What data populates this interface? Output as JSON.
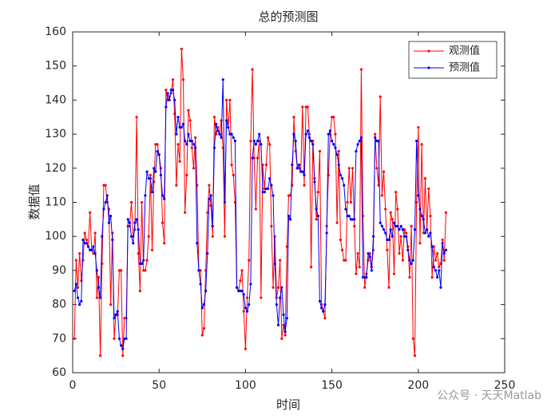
{
  "chart_data": {
    "type": "line",
    "title": "总的预测图",
    "x_label": "时间",
    "y_label": "数据值",
    "annotation": "公众号 · 天天Matlab",
    "x": [
      1,
      2,
      3,
      4,
      5,
      6,
      7,
      8,
      9,
      10,
      11,
      12,
      13,
      14,
      15,
      16,
      17,
      18,
      19,
      20,
      21,
      22,
      23,
      24,
      25,
      26,
      27,
      28,
      29,
      30,
      31,
      32,
      33,
      34,
      35,
      36,
      37,
      38,
      39,
      40,
      41,
      42,
      43,
      44,
      45,
      46,
      47,
      48,
      49,
      50,
      51,
      52,
      53,
      54,
      55,
      56,
      57,
      58,
      59,
      60,
      61,
      62,
      63,
      64,
      65,
      66,
      67,
      68,
      69,
      70,
      71,
      72,
      73,
      74,
      75,
      76,
      77,
      78,
      79,
      80,
      81,
      82,
      83,
      84,
      85,
      86,
      87,
      88,
      89,
      90,
      91,
      92,
      93,
      94,
      95,
      96,
      97,
      98,
      99,
      100,
      101,
      102,
      103,
      104,
      105,
      106,
      107,
      108,
      109,
      110,
      111,
      112,
      113,
      114,
      115,
      116,
      117,
      118,
      119,
      120,
      121,
      122,
      123,
      124,
      125,
      126,
      127,
      128,
      129,
      130,
      131,
      132,
      133,
      134,
      135,
      136,
      137,
      138,
      139,
      140,
      141,
      142,
      143,
      144,
      145,
      146,
      147,
      148,
      149,
      150,
      151,
      152,
      153,
      154,
      155,
      156,
      157,
      158,
      159,
      160,
      161,
      162,
      163,
      164,
      165,
      166,
      167,
      168,
      169,
      170,
      171,
      172,
      173,
      174,
      175,
      176,
      177,
      178,
      179,
      180,
      181,
      182,
      183,
      184,
      185,
      186,
      187,
      188,
      189,
      190,
      191,
      192,
      193,
      194,
      195,
      196,
      197,
      198,
      199,
      200,
      201,
      202,
      203,
      204,
      205,
      206,
      207,
      208,
      209,
      210,
      211,
      212,
      213,
      214,
      215,
      216
    ],
    "series": [
      {
        "name": "观测值",
        "color": "#ff0000",
        "values": [
          70,
          93,
          85,
          95,
          87,
          93,
          101,
          99,
          97,
          107,
          96,
          95,
          101,
          82,
          88,
          65,
          92,
          115,
          115,
          110,
          108,
          80,
          101,
          70,
          77,
          77,
          90,
          90,
          65,
          76,
          76,
          103,
          103,
          110,
          100,
          102,
          135,
          95,
          84,
          110,
          90,
          90,
          93,
          100,
          118,
          96,
          116,
          127,
          127,
          124,
          120,
          104,
          98,
          143,
          140,
          141,
          142,
          146,
          136,
          115,
          127,
          122,
          155,
          146,
          107,
          118,
          137,
          134,
          126,
          120,
          129,
          115,
          90,
          90,
          71,
          73,
          90,
          107,
          115,
          109,
          100,
          135,
          130,
          132,
          130,
          134,
          126,
          100,
          140,
          132,
          140,
          121,
          118,
          110,
          85,
          84,
          87,
          90,
          78,
          67,
          82,
          93,
          128,
          149,
          123,
          108,
          123,
          128,
          82,
          121,
          114,
          121,
          129,
          127,
          103,
          85,
          100,
          82,
          85,
          93,
          70,
          74,
          71,
          97,
          112,
          112,
          115,
          135,
          125,
          120,
          120,
          119,
          138,
          115,
          138,
          138,
          130,
          91,
          128,
          117,
          105,
          113,
          125,
          80,
          78,
          76,
          103,
          118,
          130,
          135,
          135,
          130,
          104,
          125,
          99,
          96,
          93,
          93,
          110,
          120,
          110,
          120,
          103,
          89,
          95,
          91,
          149,
          106,
          85,
          89,
          93,
          95,
          91,
          96,
          130,
          120,
          115,
          141,
          112,
          119,
          108,
          96,
          85,
          107,
          105,
          89,
          113,
          108,
          95,
          100,
          93,
          102,
          101,
          97,
          88,
          103,
          70,
          65,
          110,
          132,
          98,
          127,
          101,
          117,
          102,
          114,
          106,
          88,
          97,
          93,
          95,
          91,
          92,
          99,
          93,
          107
        ]
      },
      {
        "name": "预测值",
        "color": "#0000ff",
        "values": [
          84,
          86,
          82,
          80,
          81,
          99,
          98,
          98,
          97,
          96,
          96,
          97,
          95,
          90,
          85,
          82,
          100,
          108,
          110,
          112,
          104,
          106,
          99,
          76,
          77,
          78,
          70,
          68,
          67,
          70,
          70,
          105,
          104,
          100,
          98,
          104,
          105,
          102,
          92,
          92,
          93,
          112,
          119,
          117,
          117,
          113,
          120,
          119,
          125,
          124,
          118,
          112,
          111,
          138,
          142,
          140,
          143,
          143,
          140,
          130,
          135,
          132,
          132,
          133,
          128,
          127,
          130,
          128,
          128,
          127,
          126,
          98,
          90,
          86,
          79,
          80,
          84,
          95,
          111,
          112,
          103,
          126,
          133,
          131,
          130,
          129,
          146,
          110,
          134,
          132,
          130,
          130,
          129,
          128,
          85,
          84,
          84,
          84,
          83,
          79,
          78,
          80,
          86,
          123,
          128,
          127,
          128,
          130,
          127,
          113,
          113,
          114,
          114,
          117,
          115,
          112,
          92,
          80,
          74,
          82,
          85,
          77,
          72,
          76,
          106,
          105,
          121,
          130,
          128,
          120,
          121,
          119,
          119,
          118,
          130,
          131,
          129,
          128,
          127,
          116,
          108,
          106,
          81,
          79,
          78,
          80,
          101,
          130,
          131,
          128,
          127,
          126,
          124,
          121,
          118,
          117,
          115,
          108,
          106,
          106,
          105,
          105,
          105,
          125,
          127,
          128,
          129,
          88,
          88,
          88,
          95,
          94,
          90,
          100,
          129,
          128,
          128,
          104,
          103,
          102,
          101,
          99,
          99,
          102,
          100,
          104,
          103,
          103,
          102,
          103,
          102,
          100,
          100,
          96,
          93,
          92,
          93,
          102,
          128,
          112,
          108,
          106,
          105,
          101,
          102,
          100,
          101,
          97,
          91,
          90,
          88,
          90,
          85,
          98,
          95,
          96
        ]
      }
    ],
    "xlim": [
      0,
      250
    ],
    "xticks": [
      0,
      50,
      100,
      150,
      200,
      250
    ],
    "ylim": [
      60,
      160
    ],
    "yticks": [
      60,
      70,
      80,
      90,
      100,
      110,
      120,
      130,
      140,
      150,
      160
    ],
    "grid": false,
    "legend": "northeast"
  }
}
